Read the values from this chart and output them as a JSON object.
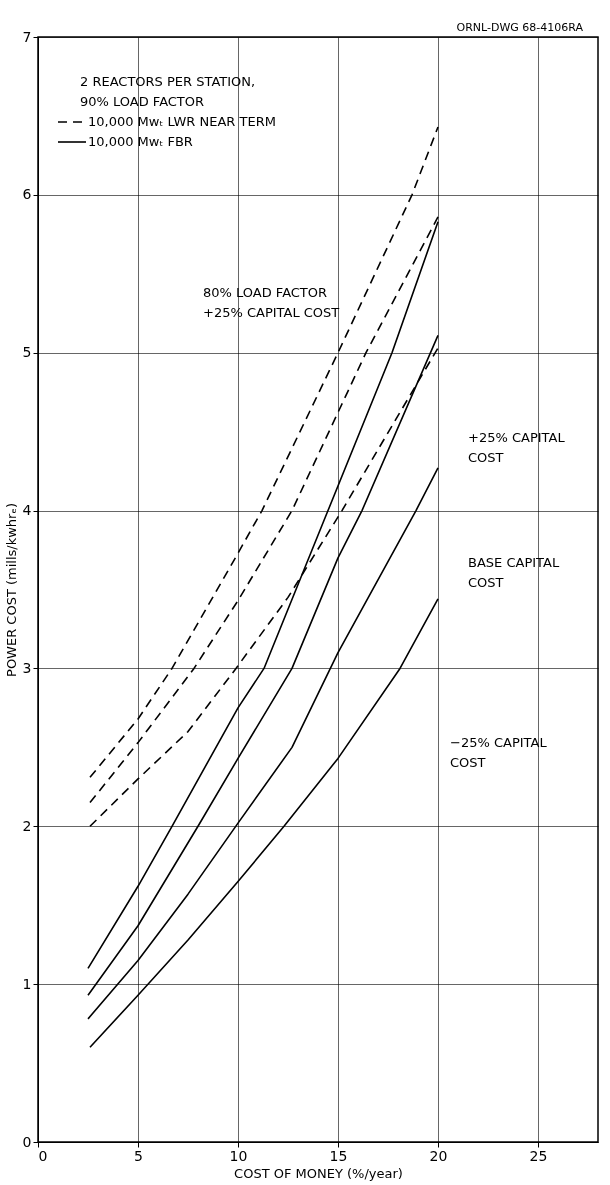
{
  "chart_data": {
    "type": "line",
    "xlabel": "COST OF MONEY (%/year)",
    "ylabel": "POWER COST (mills/kwhrₑ)",
    "legend_title": "2 REACTORS PER STATION,\n90% LOAD FACTOR",
    "legend": "top left",
    "grid": true,
    "marker": "none",
    "xlim": [
      0,
      28
    ],
    "xticks": [
      0,
      5,
      10,
      15,
      20,
      25
    ],
    "ylim": [
      0,
      7
    ],
    "yticks": [
      0,
      1,
      2,
      3,
      4,
      5,
      6,
      7
    ],
    "annotations": [
      "ORNL-DWG 68-4106RA",
      "80% LOAD FACTOR\n+25% CAPITAL COST",
      "+25% CAPITAL\nCOST",
      "BASE CAPITAL\nCOST",
      "−25% CAPITAL\nCOST"
    ],
    "series": [
      {
        "name": "10,000 Mwₜ LWR NEAR TERM",
        "color": "#000000",
        "line_style": "dashed",
        "x": [
          2.6,
          5,
          6.7,
          10,
          11.2,
          15,
          18.7,
          20
        ],
        "values": [
          2.31,
          2.68,
          3.0,
          3.73,
          4.0,
          5.0,
          6.0,
          6.43
        ]
      },
      {
        "color": "#000000",
        "line_style": "dashed",
        "x": [
          2.6,
          5,
          7.8,
          10,
          12.7,
          16.4,
          20
        ],
        "values": [
          2.15,
          2.53,
          3.0,
          3.43,
          4.0,
          5.0,
          5.86
        ]
      },
      {
        "color": "#000000",
        "line_style": "dashed",
        "x": [
          2.6,
          5,
          7.5,
          9.9,
          12.5,
          15.2,
          20
        ],
        "values": [
          2.0,
          2.3,
          2.6,
          3.0,
          3.45,
          4.0,
          5.03
        ]
      },
      {
        "name": "10,000 Mwₜ FBR",
        "color": "#000000",
        "line_style": "solid",
        "x": [
          2.5,
          5,
          6.7,
          10,
          11.3,
          14.5,
          17.7,
          20
        ],
        "values": [
          1.1,
          1.62,
          2.0,
          2.75,
          3.0,
          4.0,
          5.0,
          5.83
        ]
      },
      {
        "color": "#000000",
        "line_style": "solid",
        "x": [
          2.5,
          5,
          8,
          10,
          12.7,
          15,
          16.2,
          20
        ],
        "values": [
          0.93,
          1.37,
          2.0,
          2.43,
          3.0,
          3.7,
          4.0,
          5.11
        ]
      },
      {
        "color": "#000000",
        "line_style": "solid",
        "x": [
          2.5,
          5,
          7.5,
          10,
          12.7,
          15,
          18.9,
          20
        ],
        "values": [
          0.78,
          1.15,
          1.57,
          2.02,
          2.5,
          3.1,
          4.0,
          4.27
        ]
      },
      {
        "color": "#000000",
        "line_style": "solid",
        "x": [
          2.6,
          5,
          7.5,
          10,
          12.3,
          15,
          18.1,
          20
        ],
        "values": [
          0.6,
          0.93,
          1.28,
          1.65,
          2.0,
          2.43,
          3.0,
          3.44
        ]
      }
    ]
  }
}
